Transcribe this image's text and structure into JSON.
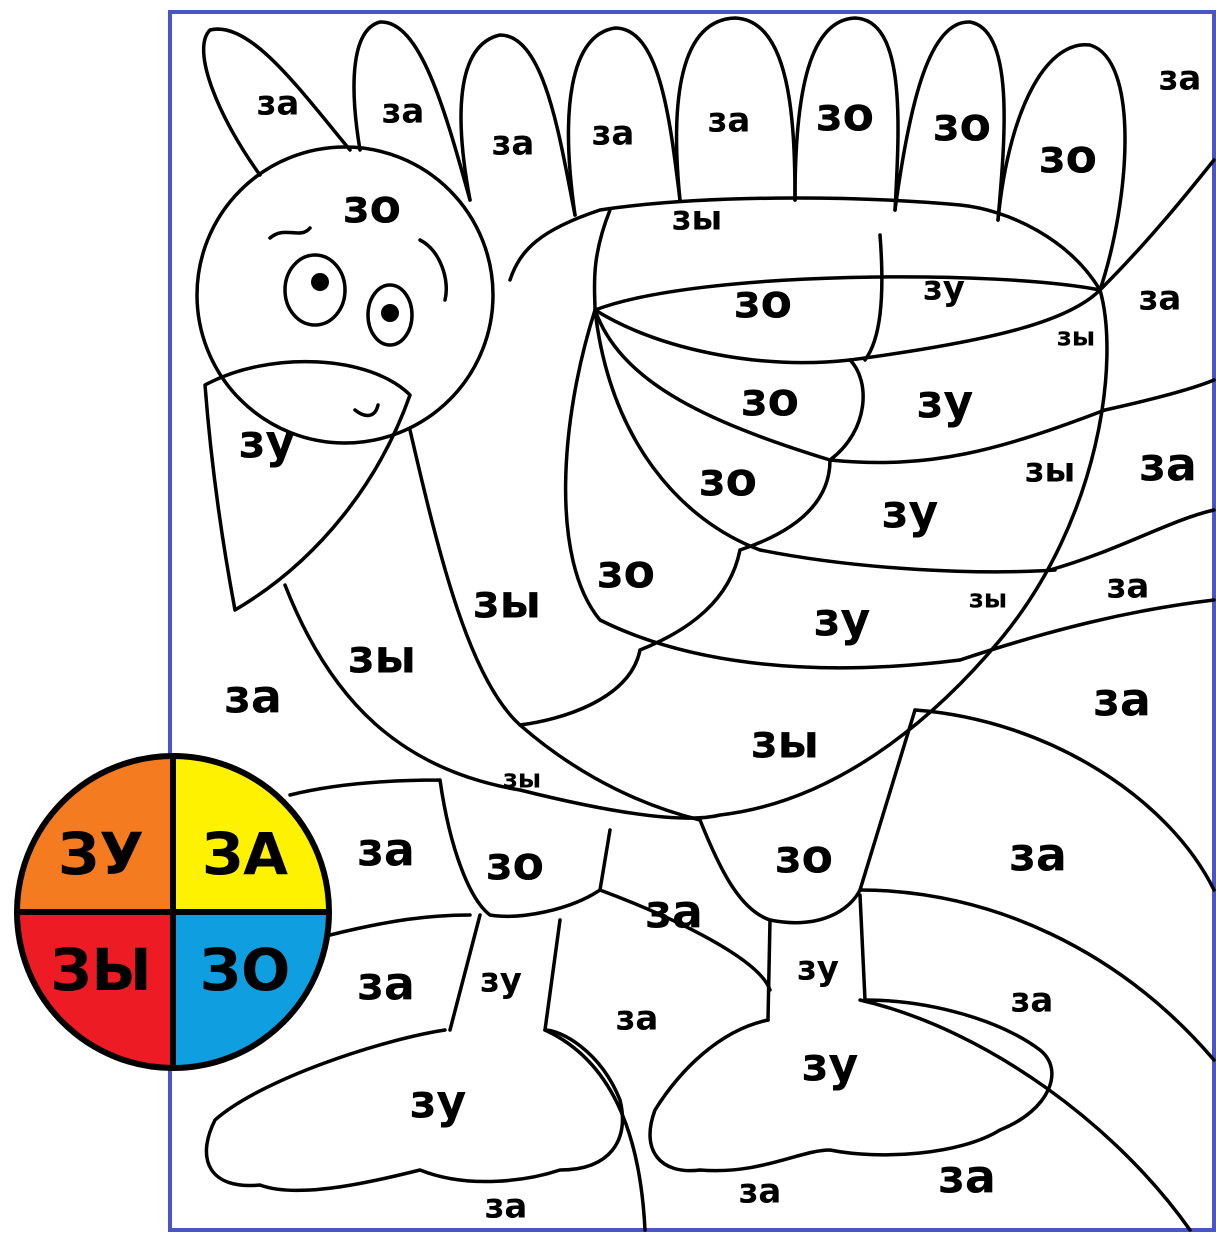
{
  "legend": [
    {
      "label": "ЗУ",
      "color": "#f47b20"
    },
    {
      "label": "ЗА",
      "color": "#fff200"
    },
    {
      "label": "ЗЫ",
      "color": "#ed1c24"
    },
    {
      "label": "ЗО",
      "color": "#0f9ee0"
    }
  ],
  "labels": [
    "за",
    "за",
    "за",
    "за",
    "за",
    "зо",
    "зо",
    "зо",
    "за",
    "зо",
    "зы",
    "зо",
    "зу",
    "за",
    "зы",
    "зо",
    "зу",
    "зу",
    "зо",
    "зы",
    "за",
    "зу",
    "зо",
    "зы",
    "зы",
    "за",
    "зу",
    "зы",
    "за",
    "за",
    "зы",
    "зы",
    "за",
    "зо",
    "зо",
    "за",
    "за",
    "за",
    "зу",
    "зу",
    "за",
    "за",
    "зу",
    "зу",
    "за",
    "за",
    "за"
  ]
}
